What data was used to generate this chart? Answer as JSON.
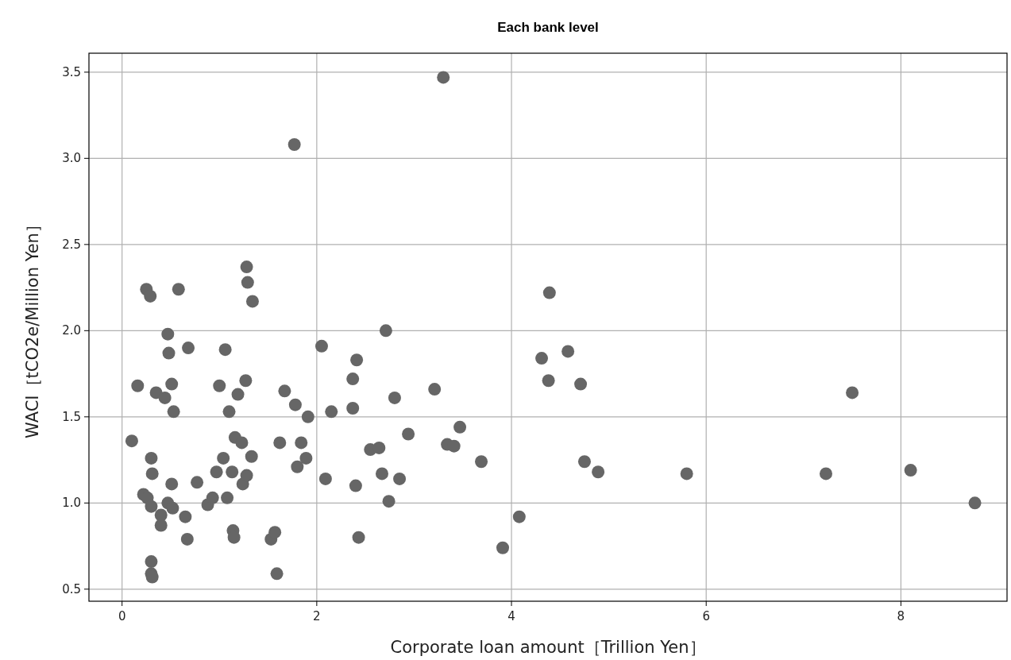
{
  "chart_data": {
    "type": "scatter",
    "title": "Each bank level",
    "xlabel": "Corporate loan amount［Trillion Yen］",
    "ylabel": "WACI［tCO2e/Million Yen］",
    "xlim": [
      -0.34,
      9.09
    ],
    "ylim": [
      0.43,
      3.61
    ],
    "xticks": [
      0,
      2,
      4,
      6,
      8
    ],
    "yticks": [
      0.5,
      {
        "value": 1,
        "label": "1.0"
      },
      1.5,
      {
        "value": 2,
        "label": "2.0"
      },
      2.5,
      {
        "value": 3,
        "label": "3.0"
      },
      3.5
    ],
    "grid": true,
    "marker": "circle",
    "series": [
      {
        "color": "#666666",
        "x": [
          0.1,
          0.16,
          0.22,
          0.26,
          0.25,
          0.29,
          0.3,
          0.31,
          0.3,
          0.3,
          0.3,
          0.31,
          0.35,
          0.4,
          0.4,
          0.44,
          0.47,
          0.48,
          0.47,
          0.51,
          0.51,
          0.53,
          0.52,
          0.58,
          0.65,
          0.68,
          0.67,
          0.77,
          0.88,
          0.93,
          0.97,
          1.0,
          1.04,
          1.06,
          1.08,
          1.1,
          1.13,
          1.14,
          1.15,
          1.16,
          1.19,
          1.23,
          1.24,
          1.27,
          1.28,
          1.29,
          1.28,
          1.33,
          1.34,
          1.53,
          1.57,
          1.59,
          1.62,
          1.67,
          1.77,
          1.78,
          1.8,
          1.84,
          1.89,
          1.91,
          2.05,
          2.09,
          2.15,
          2.37,
          2.37,
          2.41,
          2.4,
          2.43,
          2.55,
          2.64,
          2.67,
          2.71,
          2.74,
          2.8,
          2.85,
          2.94,
          3.21,
          3.3,
          3.34,
          3.41,
          3.47,
          3.69,
          3.91,
          4.08,
          4.31,
          4.39,
          4.38,
          4.58,
          4.71,
          4.75,
          4.89,
          5.8,
          7.23,
          7.5,
          8.1,
          8.76
        ],
        "values": [
          1.36,
          1.68,
          1.05,
          1.03,
          2.24,
          2.2,
          1.26,
          1.17,
          0.98,
          0.66,
          0.59,
          0.57,
          1.64,
          0.93,
          0.87,
          1.61,
          1.98,
          1.87,
          1.0,
          1.69,
          1.11,
          1.53,
          0.97,
          2.24,
          0.92,
          1.9,
          0.79,
          1.12,
          0.99,
          1.03,
          1.18,
          1.68,
          1.26,
          1.89,
          1.03,
          1.53,
          1.18,
          0.84,
          0.8,
          1.38,
          1.63,
          1.35,
          1.11,
          1.71,
          2.37,
          2.28,
          1.16,
          1.27,
          2.17,
          0.79,
          0.83,
          0.59,
          1.35,
          1.65,
          3.08,
          1.57,
          1.21,
          1.35,
          1.26,
          1.5,
          1.91,
          1.14,
          1.53,
          1.72,
          1.55,
          1.83,
          1.1,
          0.8,
          1.31,
          1.32,
          1.17,
          2.0,
          1.01,
          1.61,
          1.14,
          1.4,
          1.66,
          3.47,
          1.34,
          1.33,
          1.44,
          1.24,
          0.74,
          0.92,
          1.84,
          2.22,
          1.71,
          1.88,
          1.69,
          1.24,
          1.18,
          1.17,
          1.17,
          1.64,
          1.19,
          1.0
        ]
      }
    ]
  }
}
